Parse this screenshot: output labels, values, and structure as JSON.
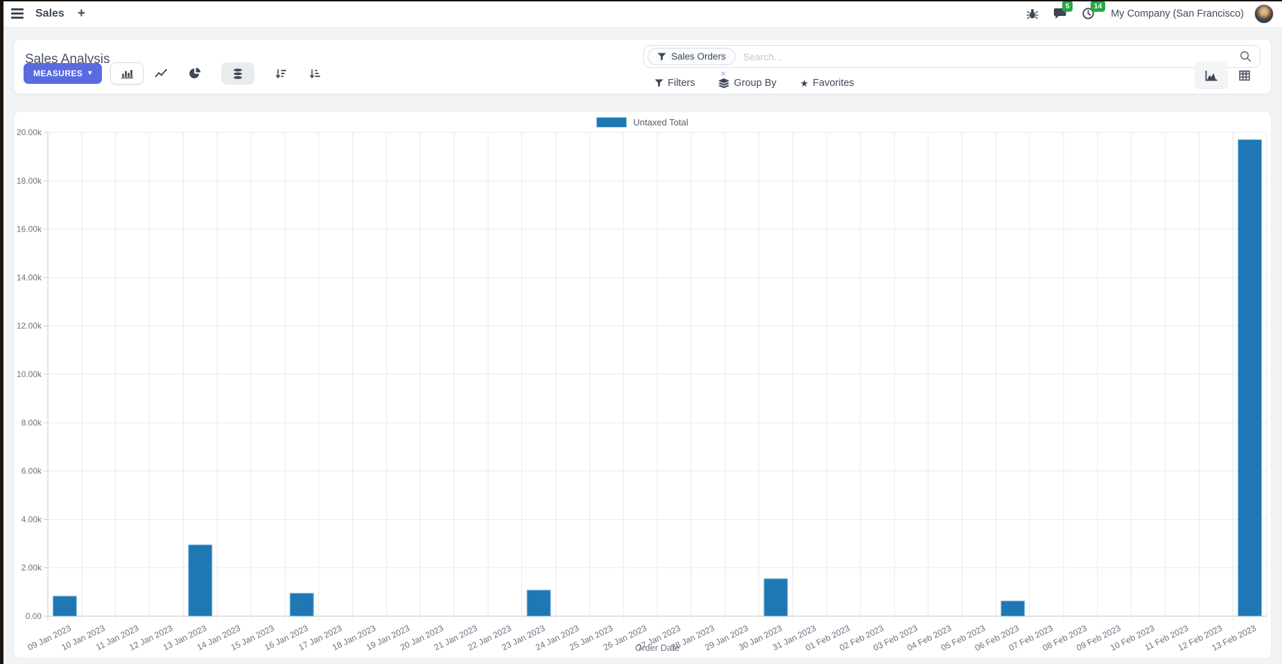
{
  "colors": {
    "accent": "#5a6be0",
    "bar": "#1f77b4",
    "bar_border": "#8fc0de",
    "badge_green": "#28a745",
    "page_bg": "#f2f3f5"
  },
  "navbar": {
    "app_name": "Sales",
    "plus": "+",
    "messages_badge": "5",
    "activities_badge": "14",
    "company": "My Company (San Francisco)"
  },
  "control_panel": {
    "title": "Sales Analysis",
    "measures_label": "MEASURES",
    "measures_caret": "▾",
    "search": {
      "facet_label": "Sales Orders",
      "placeholder": "Search...",
      "remove": "×"
    },
    "filters_label": "Filters",
    "group_by_label": "Group By",
    "favorites_label": "Favorites",
    "favorites_star": "★"
  },
  "chart_data": {
    "type": "bar",
    "title": "",
    "xlabel": "Order Date",
    "ylabel": "",
    "ylim": [
      0,
      20000
    ],
    "y_ticks": [
      "0.00",
      "2.00k",
      "4.00k",
      "6.00k",
      "8.00k",
      "10.00k",
      "12.00k",
      "14.00k",
      "16.00k",
      "18.00k",
      "20.00k"
    ],
    "grid": true,
    "legend_position": "top",
    "categories": [
      "09 Jan 2023",
      "10 Jan 2023",
      "11 Jan 2023",
      "12 Jan 2023",
      "13 Jan 2023",
      "14 Jan 2023",
      "15 Jan 2023",
      "16 Jan 2023",
      "17 Jan 2023",
      "18 Jan 2023",
      "19 Jan 2023",
      "20 Jan 2023",
      "21 Jan 2023",
      "22 Jan 2023",
      "23 Jan 2023",
      "24 Jan 2023",
      "25 Jan 2023",
      "26 Jan 2023",
      "27 Jan 2023",
      "28 Jan 2023",
      "29 Jan 2023",
      "30 Jan 2023",
      "31 Jan 2023",
      "01 Feb 2023",
      "02 Feb 2023",
      "03 Feb 2023",
      "04 Feb 2023",
      "05 Feb 2023",
      "06 Feb 2023",
      "07 Feb 2023",
      "08 Feb 2023",
      "09 Feb 2023",
      "10 Feb 2023",
      "11 Feb 2023",
      "12 Feb 2023",
      "13 Feb 2023"
    ],
    "series": [
      {
        "name": "Untaxed Total",
        "color": "#1f77b4",
        "values": [
          830,
          0,
          0,
          0,
          2950,
          0,
          0,
          950,
          0,
          0,
          0,
          0,
          0,
          0,
          1080,
          0,
          0,
          0,
          0,
          0,
          0,
          1550,
          0,
          0,
          0,
          0,
          0,
          0,
          630,
          0,
          0,
          0,
          0,
          0,
          0,
          19700
        ]
      }
    ]
  }
}
